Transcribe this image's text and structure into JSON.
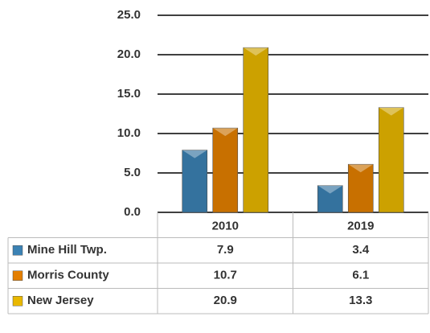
{
  "chart_data": {
    "type": "bar",
    "categories": [
      "2010",
      "2019"
    ],
    "series": [
      {
        "name": "Mine Hill Twp.",
        "color": "#3b82b4",
        "values": [
          7.9,
          3.4
        ]
      },
      {
        "name": "Morris County",
        "color": "#e47f00",
        "values": [
          10.7,
          6.1
        ]
      },
      {
        "name": "New Jersey",
        "color": "#e9b800",
        "values": [
          20.9,
          13.3
        ]
      }
    ],
    "ylim": [
      0,
      25
    ],
    "yticks": [
      {
        "value": 0,
        "label": "0.0"
      },
      {
        "value": 5,
        "label": "5.0"
      },
      {
        "value": 10,
        "label": "10.0"
      },
      {
        "value": 15,
        "label": "15.0"
      },
      {
        "value": 20,
        "label": "20.0"
      },
      {
        "value": 25,
        "label": "25.0"
      }
    ],
    "grid": true
  }
}
